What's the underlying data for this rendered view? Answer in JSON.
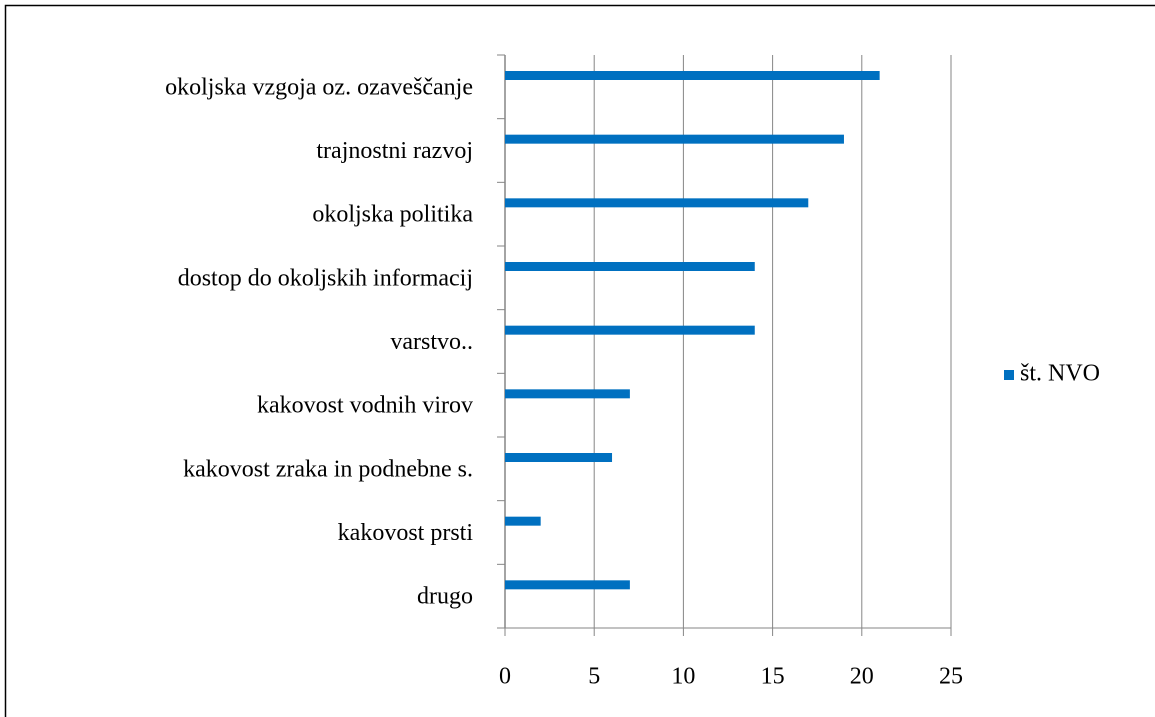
{
  "chart_data": {
    "type": "bar",
    "orientation": "horizontal",
    "categories": [
      "okoljska vzgoja oz. ozaveščanje",
      "trajnostni razvoj",
      "okoljska politika",
      "dostop do okoljskih informacij",
      "varstvo..",
      "kakovost vodnih virov",
      "kakovost zraka in podnebne s.",
      "kakovost prsti",
      "drugo"
    ],
    "series": [
      {
        "name": "št. NVO",
        "color": "#0070c0",
        "values": [
          21,
          19,
          17,
          14,
          14,
          7,
          6,
          2,
          7
        ]
      }
    ],
    "xlim": [
      0,
      25
    ],
    "xticks": [
      0,
      5,
      10,
      15,
      20,
      25
    ],
    "grid": true,
    "legend": "right"
  }
}
